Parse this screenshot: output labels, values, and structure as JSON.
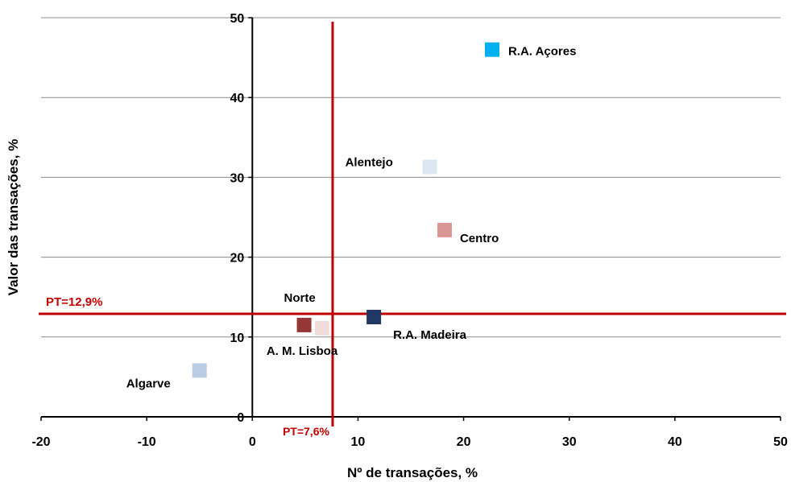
{
  "chart_data": {
    "type": "scatter",
    "xlabel": "Nº de transações, %",
    "ylabel": "Valor das transações, %",
    "xlim": [
      -20,
      50
    ],
    "ylim": [
      0,
      50
    ],
    "x_ticks": [
      -20,
      -10,
      0,
      10,
      20,
      30,
      40,
      50
    ],
    "y_ticks": [
      0,
      10,
      20,
      30,
      40,
      50
    ],
    "grid": "horizontal",
    "reference_lines": {
      "x": {
        "value": 7.6,
        "label": "PT=7,6%",
        "color": "#c00000"
      },
      "y": {
        "value": 12.9,
        "label": "PT=12,9%",
        "color": "#c00000"
      }
    },
    "points": [
      {
        "name": "R.A. Açores",
        "x": 22.7,
        "y": 46.0,
        "color": "#00b0f0"
      },
      {
        "name": "Alentejo",
        "x": 16.8,
        "y": 31.3,
        "color": "#dce6f2"
      },
      {
        "name": "Centro",
        "x": 18.2,
        "y": 23.4,
        "color": "#d99694"
      },
      {
        "name": "R.A. Madeira",
        "x": 11.5,
        "y": 12.5,
        "color": "#1f3864"
      },
      {
        "name": "Norte",
        "x": 4.9,
        "y": 11.5,
        "color": "#953735"
      },
      {
        "name": "A. M. Lisboa",
        "x": 6.6,
        "y": 11.1,
        "color": "#f2dcdb"
      },
      {
        "name": "Algarve",
        "x": -5.0,
        "y": 5.8,
        "color": "#b9cde5"
      }
    ]
  }
}
